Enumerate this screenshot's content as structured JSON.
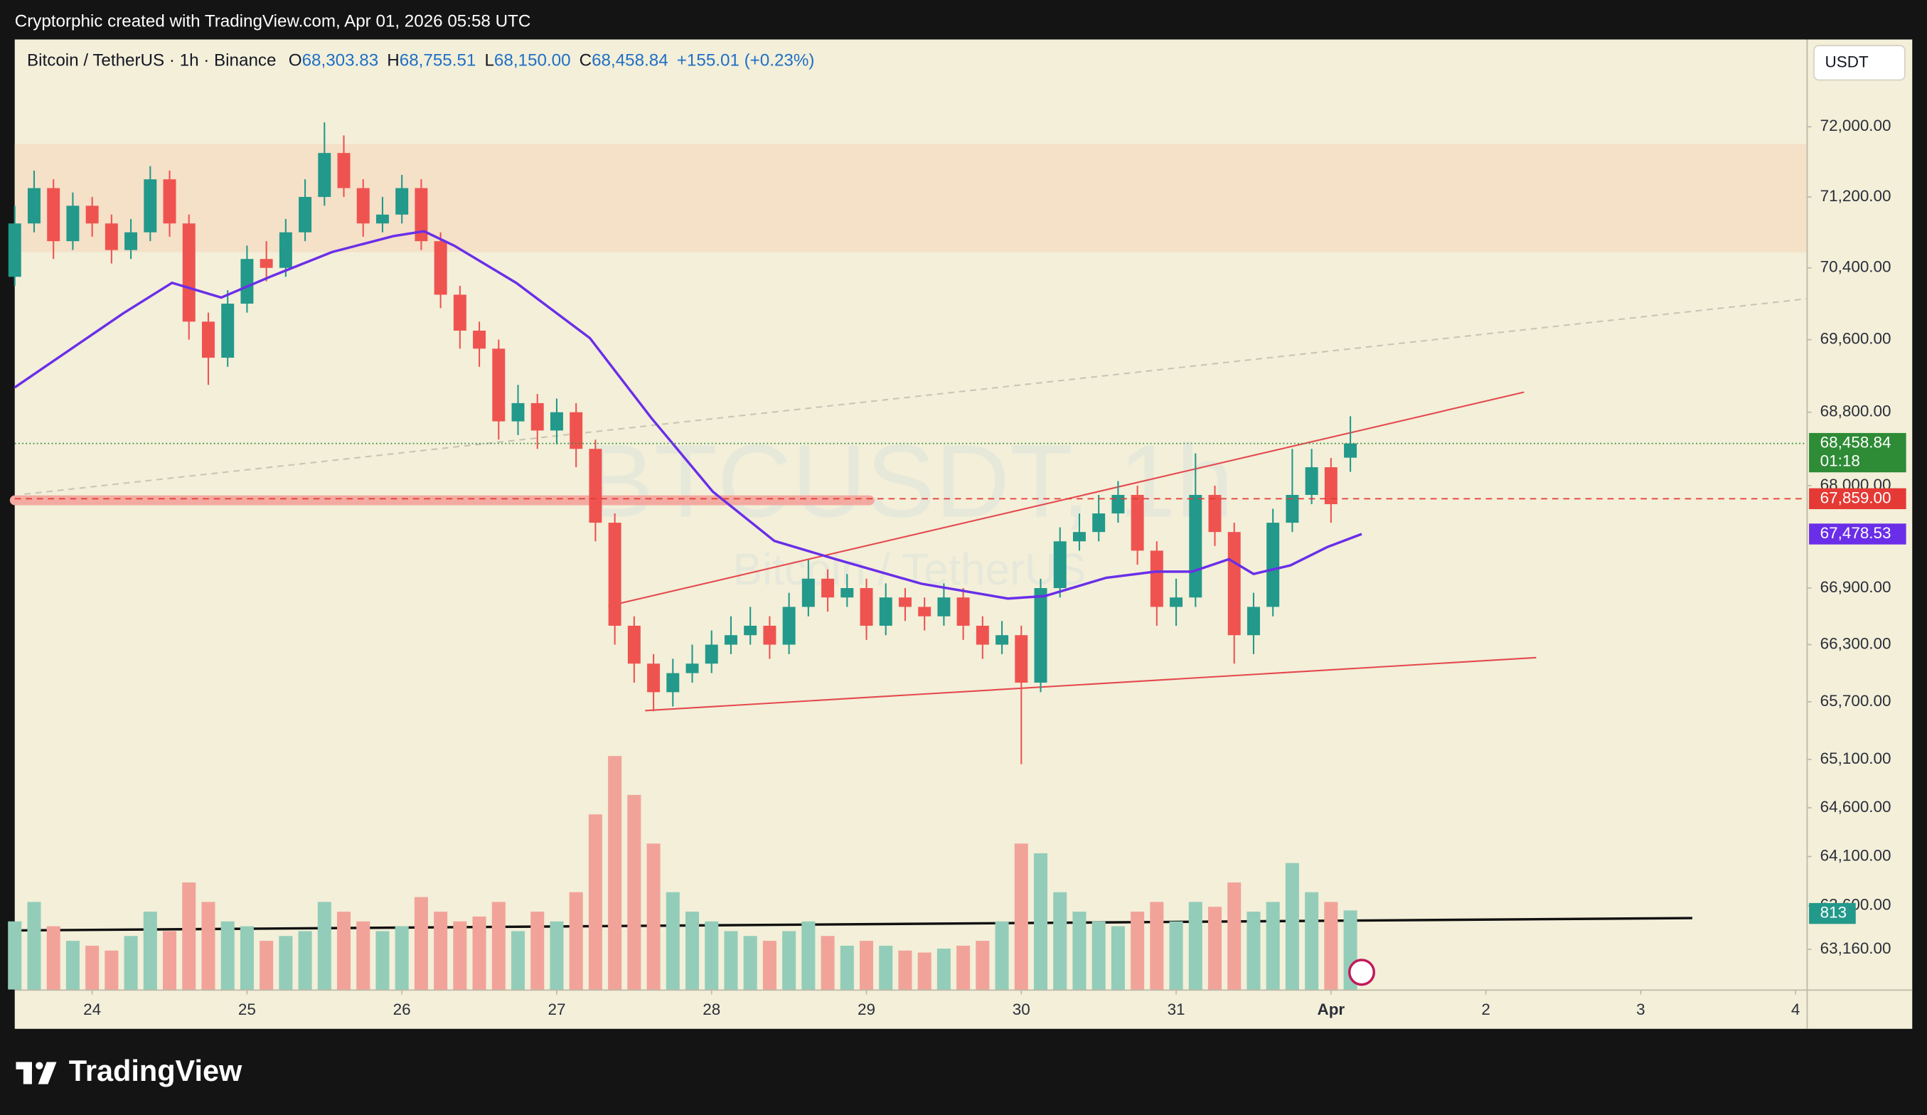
{
  "header": "Cryptorphic created with TradingView.com, Apr 01, 2026 05:58 UTC",
  "currency_button": "USDT",
  "brand": "TradingView",
  "chart_data": {
    "type": "candlestick",
    "title": "Bitcoin / TetherUS · 1h · Binance",
    "legend_ohlc": [
      {
        "key": "O",
        "text": "68,303.83"
      },
      {
        "key": "H",
        "text": "68,755.51"
      },
      {
        "key": "L",
        "text": "68,150.00"
      },
      {
        "key": "C",
        "text": "68,458.84"
      }
    ],
    "change": "+155.01 (+0.23%)",
    "watermark": "BTCUSDT, 1h",
    "watermark_subtitle": "Bitcoin / TetherUS",
    "log_scale": true,
    "up_color": "#22998a",
    "down_color": "#ef5350",
    "volume_up_color": "#93cdb9",
    "volume_down_color": "#f2a399",
    "xlim": [
      23.5,
      35.071
    ],
    "xticks": [
      24,
      25,
      26,
      27,
      28,
      29,
      30,
      31,
      {
        "value": 32,
        "label": "Apr"
      },
      {
        "value": 33,
        "label": "2"
      },
      {
        "value": 34,
        "label": "3"
      },
      {
        "value": 35,
        "label": "4"
      }
    ],
    "ylim": [
      62757,
      73008
    ],
    "yticks": [
      {
        "value": 72000,
        "label": "72,000.00"
      },
      {
        "value": 71200,
        "label": "71,200.00"
      },
      {
        "value": 70400,
        "label": "70,400.00"
      },
      {
        "value": 69600,
        "label": "69,600.00"
      },
      {
        "value": 68800,
        "label": "68,800.00"
      },
      {
        "value": 68000,
        "label": "68,000.00"
      },
      {
        "value": 66900,
        "label": "66,900.00"
      },
      {
        "value": 66300,
        "label": "66,300.00"
      },
      {
        "value": 65700,
        "label": "65,700.00"
      },
      {
        "value": 65100,
        "label": "65,100.00"
      },
      {
        "value": 64600,
        "label": "64,600.00"
      },
      {
        "value": 64100,
        "label": "64,100.00"
      },
      {
        "value": 63600,
        "label": "63,600.00"
      },
      {
        "value": 63160,
        "label": "63,160.00"
      }
    ],
    "candles": {
      "x": [
        23.5,
        23.625,
        23.75,
        23.875,
        24,
        24.125,
        24.25,
        24.375,
        24.5,
        24.625,
        24.75,
        24.875,
        25,
        25.125,
        25.25,
        25.375,
        25.5,
        25.625,
        25.75,
        25.875,
        26,
        26.125,
        26.25,
        26.375,
        26.5,
        26.625,
        26.75,
        26.875,
        27,
        27.125,
        27.25,
        27.375,
        27.5,
        27.625,
        27.75,
        27.875,
        28,
        28.125,
        28.25,
        28.375,
        28.5,
        28.625,
        28.75,
        28.875,
        29,
        29.125,
        29.25,
        29.375,
        29.5,
        29.625,
        29.75,
        29.875,
        30,
        30.125,
        30.25,
        30.375,
        30.5,
        30.625,
        30.75,
        30.875,
        31,
        31.125,
        31.25,
        31.375,
        31.5,
        31.625,
        31.75,
        31.875,
        32,
        32.125
      ],
      "open": [
        70300,
        70900,
        71300,
        70700,
        71100,
        70900,
        70600,
        70800,
        71400,
        70900,
        69800,
        69400,
        70000,
        70500,
        70400,
        70800,
        71200,
        71700,
        71300,
        70900,
        71000,
        71300,
        70700,
        70100,
        69700,
        69500,
        68700,
        68900,
        68600,
        68800,
        68400,
        67600,
        66500,
        66100,
        65800,
        66000,
        66100,
        66300,
        66400,
        66500,
        66300,
        66700,
        67000,
        66800,
        66900,
        66500,
        66800,
        66700,
        66600,
        66800,
        66500,
        66300,
        66400,
        65900,
        66900,
        67400,
        67500,
        67700,
        67900,
        67300,
        66700,
        66800,
        67900,
        67500,
        66400,
        66700,
        67600,
        67900,
        68200,
        68303.83
      ],
      "high": [
        71100,
        71500,
        71400,
        71250,
        71200,
        71000,
        70950,
        71550,
        71500,
        71000,
        69900,
        70150,
        70650,
        70700,
        70950,
        71400,
        72050,
        71900,
        71400,
        71200,
        71450,
        71400,
        70800,
        70200,
        69800,
        69600,
        69100,
        69000,
        68950,
        68900,
        68500,
        67700,
        66600,
        66200,
        66150,
        66300,
        66450,
        66600,
        66700,
        66600,
        66850,
        67200,
        67100,
        67050,
        67000,
        66950,
        66900,
        66800,
        66950,
        66900,
        66600,
        66550,
        66500,
        67000,
        67550,
        67700,
        67900,
        68050,
        68000,
        67400,
        67000,
        68350,
        68000,
        67600,
        66850,
        67750,
        68400,
        68400,
        68300,
        68755.51
      ],
      "low": [
        70200,
        70800,
        70500,
        70600,
        70750,
        70450,
        70500,
        70700,
        70750,
        69600,
        69100,
        69300,
        69900,
        70250,
        70300,
        70700,
        71100,
        71200,
        70750,
        70800,
        70900,
        70600,
        69950,
        69500,
        69300,
        68500,
        68550,
        68400,
        68450,
        68200,
        67400,
        66300,
        65900,
        65600,
        65650,
        65900,
        66000,
        66200,
        66300,
        66150,
        66200,
        66600,
        66650,
        66700,
        66350,
        66400,
        66550,
        66450,
        66500,
        66350,
        66150,
        66200,
        65050,
        65800,
        66800,
        67300,
        67400,
        67600,
        67150,
        66500,
        66500,
        66700,
        67350,
        66100,
        66200,
        66600,
        67500,
        67800,
        67600,
        68150
      ],
      "close": [
        70900,
        71300,
        70700,
        71100,
        70900,
        70600,
        70800,
        71400,
        70900,
        69800,
        69400,
        70000,
        70500,
        70400,
        70800,
        71200,
        71700,
        71300,
        70900,
        71000,
        71300,
        70700,
        70100,
        69700,
        69500,
        68700,
        68900,
        68600,
        68800,
        68400,
        67600,
        66500,
        66100,
        65800,
        66000,
        66100,
        66300,
        66400,
        66500,
        66300,
        66700,
        67000,
        66800,
        66900,
        66500,
        66800,
        66700,
        66600,
        66800,
        66500,
        66300,
        66400,
        65900,
        66900,
        67400,
        67500,
        67700,
        67900,
        67300,
        66700,
        66800,
        67900,
        67500,
        66400,
        66700,
        67600,
        67900,
        68200,
        67800,
        68458.84
      ],
      "volume": [
        700,
        900,
        650,
        500,
        450,
        400,
        550,
        800,
        600,
        1100,
        900,
        700,
        650,
        500,
        550,
        600,
        900,
        800,
        700,
        600,
        650,
        950,
        800,
        700,
        750,
        900,
        600,
        800,
        700,
        1000,
        1800,
        2400,
        2000,
        1500,
        1000,
        800,
        700,
        600,
        550,
        500,
        600,
        700,
        550,
        450,
        500,
        450,
        400,
        380,
        420,
        450,
        500,
        700,
        1500,
        1400,
        1000,
        800,
        700,
        650,
        800,
        900,
        700,
        900,
        850,
        1100,
        800,
        900,
        1300,
        1000,
        900,
        813
      ]
    },
    "ema": {
      "color": "#6a2ee8",
      "x": [
        23.5,
        24.198,
        24.516,
        24.833,
        25.151,
        25.548,
        25.944,
        26.143,
        26.341,
        26.738,
        27.214,
        27.611,
        28.008,
        28.405,
        28.802,
        29.357,
        29.913,
        30.151,
        30.548,
        30.865,
        31.103,
        31.341,
        31.5,
        31.738,
        31.976,
        32.198
      ],
      "values": [
        69073,
        69890,
        70233,
        70068,
        70302,
        70577,
        70757,
        70813,
        70646,
        70233,
        69617,
        68737,
        67935,
        67405,
        67208,
        66945,
        66789,
        66815,
        67010,
        67076,
        67076,
        67208,
        67050,
        67142,
        67339,
        67478.53
      ]
    },
    "price_labels": [
      {
        "value": 68458.84,
        "label": "68,458.84",
        "color": "#2e8b36"
      },
      {
        "value": 67859,
        "label": "67,859.00",
        "color": "#e53935"
      },
      {
        "value": 67478.53,
        "label": "67,478.53",
        "color": "#6a2ee8"
      }
    ],
    "countdown": "01:18",
    "drawings": [
      {
        "kind": "zone",
        "x": [
          23.5,
          35.071
        ],
        "y": [
          70577,
          71803
        ],
        "color": "#f5e0c8"
      },
      {
        "kind": "thick",
        "x": [
          23.5,
          29.02
        ],
        "y": [
          67842,
          67842
        ],
        "color": "#f3aaa1"
      },
      {
        "kind": "line",
        "x": [
          27.333,
          33.246
        ],
        "y": [
          66709,
          69020
        ],
        "color": "#e5484d"
      },
      {
        "kind": "line",
        "x": [
          27.571,
          33.325
        ],
        "y": [
          65607,
          66163
        ],
        "color": "#e5484d"
      },
      {
        "kind": "dashed",
        "x": [
          23.563,
          35.071
        ],
        "y": [
          67908,
          70054
        ],
        "color": "#c9c4b4"
      },
      {
        "kind": "line",
        "x": [
          23.5,
          34.333
        ],
        "y": [
          63350,
          63475
        ],
        "color": "#111111"
      }
    ]
  }
}
